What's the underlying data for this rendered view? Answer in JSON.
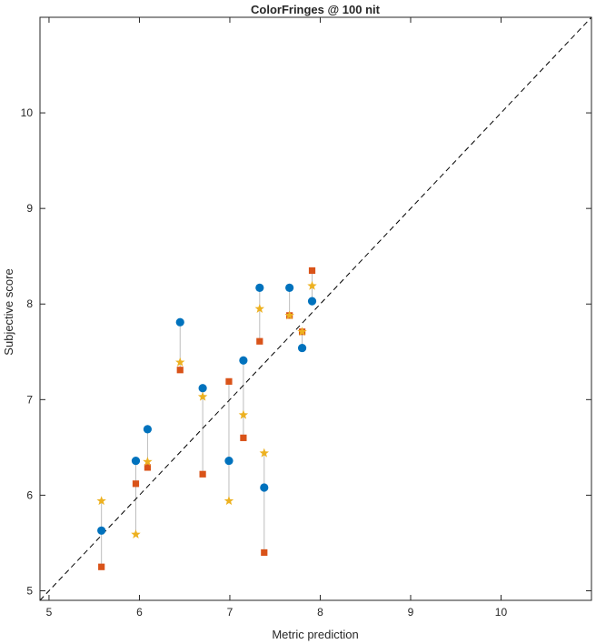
{
  "chart_data": {
    "type": "scatter",
    "title": "ColorFringes @ 100 nit",
    "xlabel": "Metric prediction",
    "ylabel": "Subjective score",
    "xlim": [
      4.9,
      11.0
    ],
    "ylim": [
      4.9,
      11.0
    ],
    "xticks": [
      "5",
      "6",
      "7",
      "8",
      "9",
      "10"
    ],
    "yticks": [
      "5",
      "6",
      "7",
      "8",
      "9",
      "10"
    ],
    "grid": false,
    "reference_line": {
      "style": "dashed",
      "from": [
        4.9,
        4.9
      ],
      "to": [
        11.0,
        11.0
      ]
    },
    "colors": {
      "circle": "#0072BD",
      "square": "#D95319",
      "star": "#EDB120",
      "connector": "#BDBDBD",
      "refline": "#000000"
    },
    "points": [
      {
        "x": 5.58,
        "circle": 5.63,
        "square": 5.25,
        "star": 5.94
      },
      {
        "x": 5.96,
        "circle": 6.36,
        "square": 6.12,
        "star": 5.59
      },
      {
        "x": 6.09,
        "circle": 6.69,
        "square": 6.29,
        "star": 6.35
      },
      {
        "x": 6.45,
        "circle": 7.81,
        "square": 7.31,
        "star": 7.39
      },
      {
        "x": 6.7,
        "circle": 7.12,
        "square": 6.22,
        "star": 7.03
      },
      {
        "x": 6.99,
        "circle": 6.36,
        "square": 7.19,
        "star": 5.94
      },
      {
        "x": 7.15,
        "circle": 7.41,
        "square": 6.6,
        "star": 6.84
      },
      {
        "x": 7.33,
        "circle": 8.17,
        "square": 7.61,
        "star": 7.95
      },
      {
        "x": 7.38,
        "circle": 6.08,
        "square": 5.4,
        "star": 6.44
      },
      {
        "x": 7.66,
        "circle": 8.17,
        "square": 7.88,
        "star": 7.88
      },
      {
        "x": 7.8,
        "circle": 7.54,
        "square": 7.71,
        "star": 7.71
      },
      {
        "x": 7.91,
        "circle": 8.03,
        "square": 8.35,
        "star": 8.19
      }
    ]
  }
}
